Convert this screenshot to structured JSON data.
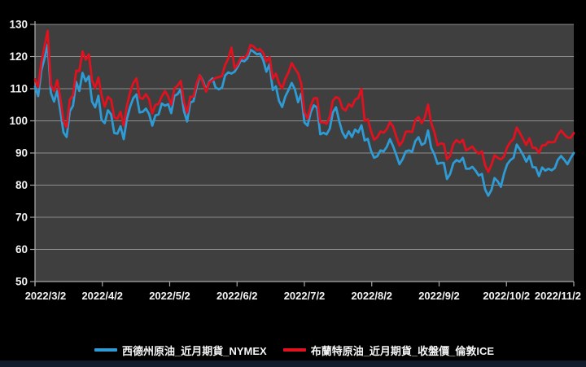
{
  "window": {
    "background": "#000000",
    "bottom_bar_color": "#121b2c"
  },
  "chart_data": {
    "type": "line",
    "title": "",
    "xlabel": "",
    "ylabel": "",
    "ylim": [
      50,
      130
    ],
    "y_ticks": [
      50,
      60,
      70,
      80,
      90,
      100,
      110,
      120,
      130
    ],
    "x_tick_labels": [
      "2022/3/2",
      "2022/4/2",
      "2022/5/2",
      "2022/6/2",
      "2022/7/2",
      "2022/8/2",
      "2022/9/2",
      "2022/10/2",
      "2022/11/2"
    ],
    "grid": true,
    "plot_bg": "#3f3f3f",
    "grid_color": "#8e8e8e",
    "axis_color": "#a6a6a6",
    "tick_text_color": "#f2f2f2",
    "legend_position": "bottom",
    "series": [
      {
        "name": "西德州原油_近月期貨_NYMEX",
        "color": "#2e9bd5",
        "values": [
          110.6,
          107.7,
          115.7,
          119.4,
          123.7,
          108.7,
          106.0,
          109.3,
          103.0,
          96.4,
          95.0,
          103.0,
          104.7,
          112.1,
          109.3,
          114.9,
          112.3,
          113.9,
          106.0,
          104.2,
          107.8,
          100.3,
          99.3,
          103.3,
          102.0,
          96.2,
          96.0,
          98.3,
          94.3,
          100.6,
          104.3,
          107.0,
          108.2,
          102.6,
          102.8,
          103.8,
          102.1,
          98.5,
          101.7,
          102.0,
          105.4,
          104.7,
          105.2,
          102.4,
          107.8,
          108.3,
          109.8,
          103.1,
          99.8,
          105.7,
          106.1,
          110.5,
          114.2,
          112.4,
          109.6,
          112.2,
          113.2,
          110.3,
          109.8,
          110.3,
          114.1,
          115.1,
          114.7,
          115.3,
          116.9,
          118.9,
          118.5,
          119.4,
          122.1,
          121.5,
          120.7,
          120.9,
          118.9,
          115.3,
          117.6,
          109.6,
          110.7,
          106.2,
          104.3,
          107.6,
          109.6,
          111.8,
          109.8,
          105.8,
          108.4,
          99.5,
          98.5,
          102.7,
          104.8,
          104.1,
          95.8,
          96.3,
          95.8,
          97.6,
          102.6,
          104.2,
          99.9,
          96.4,
          94.7,
          96.7,
          95.0,
          97.3,
          96.4,
          98.6,
          93.9,
          94.4,
          90.7,
          88.5,
          89.0,
          90.8,
          90.5,
          91.9,
          94.3,
          92.1,
          89.4,
          86.5,
          88.1,
          90.5,
          90.8,
          90.4,
          93.7,
          94.9,
          92.5,
          93.1,
          97.0,
          91.6,
          89.6,
          86.6,
          86.9,
          86.9,
          81.9,
          83.5,
          86.8,
          87.8,
          87.3,
          88.5,
          85.1,
          85.1,
          85.7,
          84.5,
          83.0,
          83.5,
          78.7,
          76.7,
          78.5,
          82.2,
          81.2,
          79.5,
          83.6,
          86.5,
          87.8,
          88.5,
          92.6,
          91.1,
          89.4,
          87.3,
          89.1,
          85.6,
          85.5,
          82.8,
          85.5,
          84.5,
          85.1,
          84.6,
          85.3,
          87.9,
          89.1,
          87.9,
          86.5,
          88.4,
          90.0
        ]
      },
      {
        "name": "布蘭特原油_近月期貨_收盤價_倫敦ICE",
        "color": "#e01220",
        "values": [
          112.9,
          110.5,
          118.1,
          123.2,
          128.0,
          111.1,
          109.3,
          112.7,
          106.9,
          99.9,
          98.0,
          106.6,
          107.9,
          115.6,
          115.5,
          121.6,
          119.0,
          120.7,
          112.5,
          110.2,
          113.5,
          107.9,
          104.4,
          107.5,
          106.6,
          101.1,
          100.6,
          102.8,
          98.5,
          104.6,
          108.8,
          111.7,
          113.2,
          107.3,
          106.8,
          108.3,
          106.7,
          102.3,
          105.0,
          105.3,
          107.6,
          109.3,
          107.6,
          105.0,
          110.1,
          110.9,
          112.4,
          105.9,
          102.5,
          107.5,
          107.5,
          111.6,
          114.2,
          111.9,
          109.1,
          112.0,
          112.6,
          113.4,
          113.6,
          114.0,
          117.4,
          119.4,
          122.8,
          116.3,
          117.6,
          119.7,
          119.5,
          120.6,
          123.6,
          123.1,
          122.0,
          122.3,
          121.2,
          118.5,
          119.8,
          113.1,
          114.7,
          111.7,
          110.1,
          113.1,
          115.1,
          118.0,
          116.3,
          114.8,
          111.6,
          102.8,
          100.7,
          104.7,
          107.0,
          107.1,
          99.5,
          99.6,
          99.1,
          101.2,
          106.3,
          107.4,
          106.9,
          103.9,
          103.2,
          105.2,
          104.4,
          106.6,
          107.1,
          110.0,
          100.0,
          100.5,
          96.8,
          94.1,
          94.9,
          96.7,
          96.3,
          97.4,
          99.6,
          98.2,
          95.1,
          92.3,
          93.7,
          96.6,
          96.7,
          96.5,
          100.2,
          101.2,
          99.3,
          101.0,
          105.1,
          99.3,
          96.5,
          92.4,
          93.0,
          92.8,
          88.0,
          89.2,
          92.8,
          94.0,
          93.2,
          94.1,
          90.8,
          91.4,
          92.0,
          90.6,
          89.8,
          90.5,
          86.2,
          84.1,
          86.3,
          89.3,
          88.5,
          88.0,
          88.9,
          91.8,
          93.4,
          94.4,
          97.9,
          96.2,
          94.3,
          92.5,
          94.6,
          91.6,
          91.6,
          90.0,
          92.4,
          92.4,
          93.5,
          93.3,
          93.5,
          95.7,
          97.0,
          95.8,
          94.8,
          94.7,
          96.2
        ]
      }
    ]
  }
}
